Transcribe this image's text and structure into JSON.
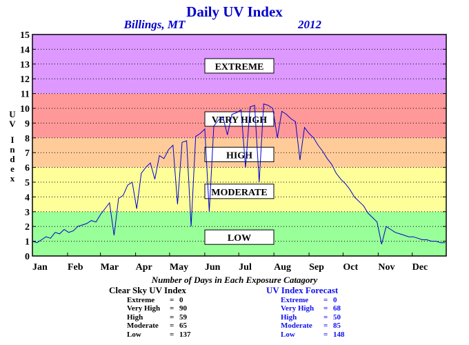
{
  "chart_data": {
    "type": "line",
    "title": "Daily UV Index",
    "subtitle_location": "Billings, MT",
    "subtitle_year": "2012",
    "ylabel": "UV Index",
    "xlabel": "",
    "ylim": [
      0,
      15
    ],
    "yticks": [
      0,
      1,
      2,
      3,
      4,
      5,
      6,
      7,
      8,
      9,
      10,
      11,
      12,
      13,
      14,
      15
    ],
    "grid": true,
    "xticks": [
      "Jan",
      "Feb",
      "Mar",
      "Apr",
      "May",
      "Jun",
      "Jul",
      "Aug",
      "Sep",
      "Oct",
      "Nov",
      "Dec"
    ],
    "bands": [
      {
        "label": "LOW",
        "from": 0,
        "to": 3,
        "color": "#99ff99",
        "label_y": 1.3
      },
      {
        "label": "MODERATE",
        "from": 3,
        "to": 6,
        "color": "#ffff99",
        "label_y": 4.4
      },
      {
        "label": "HIGH",
        "from": 6,
        "to": 8,
        "color": "#ffcc99",
        "label_y": 6.9
      },
      {
        "label": "VERY HIGH",
        "from": 8,
        "to": 11,
        "color": "#ff9999",
        "label_y": 9.3
      },
      {
        "label": "EXTREME",
        "from": 11,
        "to": 15,
        "color": "#dd99ff",
        "label_y": 12.9
      }
    ],
    "series": [
      {
        "color": "#0000cc",
        "x": [
          1,
          5,
          9,
          13,
          17,
          21,
          25,
          29,
          33,
          37,
          41,
          45,
          49,
          53,
          57,
          61,
          65,
          69,
          73,
          77,
          81,
          85,
          89,
          93,
          97,
          101,
          105,
          109,
          113,
          117,
          121,
          125,
          129,
          133,
          137,
          141,
          145,
          149,
          153,
          157,
          161,
          165,
          169,
          173,
          177,
          181,
          185,
          189,
          193,
          197,
          201,
          205,
          209,
          213,
          217,
          221,
          225,
          229,
          233,
          237,
          241,
          245,
          249,
          253,
          257,
          261,
          265,
          269,
          273,
          277,
          281,
          285,
          289,
          293,
          297,
          301,
          305,
          309,
          313,
          317,
          321,
          325,
          329,
          333,
          337,
          341,
          345,
          349,
          353,
          357,
          361,
          365
        ],
        "y": [
          1.0,
          0.9,
          1.1,
          1.3,
          1.2,
          1.6,
          1.5,
          1.8,
          1.6,
          1.7,
          2.0,
          2.1,
          2.2,
          2.4,
          2.3,
          2.8,
          3.2,
          3.6,
          1.4,
          3.9,
          4.1,
          4.8,
          5.0,
          3.2,
          5.6,
          6.0,
          6.3,
          5.2,
          6.8,
          6.6,
          7.2,
          7.5,
          3.5,
          7.7,
          7.8,
          2.0,
          8.1,
          8.3,
          8.6,
          3.0,
          8.8,
          9.2,
          9.4,
          8.2,
          9.6,
          9.7,
          9.9,
          6.0,
          10.1,
          10.2,
          5.0,
          10.3,
          10.2,
          10.0,
          8.0,
          9.8,
          9.6,
          9.3,
          9.1,
          6.5,
          8.7,
          8.3,
          8.0,
          7.5,
          7.1,
          6.6,
          6.2,
          5.6,
          5.2,
          4.9,
          4.5,
          4.0,
          3.7,
          3.4,
          2.9,
          2.6,
          2.3,
          0.8,
          2.0,
          1.8,
          1.6,
          1.5,
          1.4,
          1.3,
          1.3,
          1.2,
          1.1,
          1.1,
          1.0,
          1.0,
          0.9,
          0.9
        ]
      }
    ]
  },
  "stats": {
    "heading": "Number of Days in Each Exposure Catagory",
    "clear_sky": {
      "title": "Clear Sky UV Index",
      "rows": [
        {
          "label": "Extreme",
          "value": "0"
        },
        {
          "label": "Very High",
          "value": "90"
        },
        {
          "label": "High",
          "value": "59"
        },
        {
          "label": "Moderate",
          "value": "65"
        },
        {
          "label": "Low",
          "value": "137"
        }
      ]
    },
    "forecast": {
      "title": "UV Index Forecast",
      "rows": [
        {
          "label": "Extreme",
          "value": "0"
        },
        {
          "label": "Very High",
          "value": "68"
        },
        {
          "label": "High",
          "value": "50"
        },
        {
          "label": "Moderate",
          "value": "85"
        },
        {
          "label": "Low",
          "value": "148"
        }
      ]
    }
  }
}
